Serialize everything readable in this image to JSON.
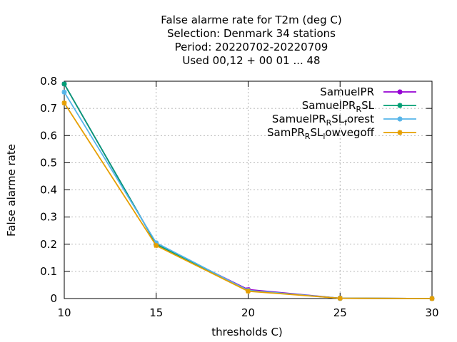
{
  "chart_data": {
    "type": "line",
    "title_lines": [
      "False alarme rate  for T2m (deg C)",
      "Selection: Denmark     34 stations",
      "Period: 20220702-20220709",
      "Used  00,12  + 00 01 ... 48"
    ],
    "xlabel": "thresholds C)",
    "ylabel": "False alarme rate",
    "xlim": [
      10,
      30
    ],
    "ylim": [
      0,
      0.8
    ],
    "xticks": [
      10,
      15,
      20,
      25,
      30
    ],
    "yticks": [
      0,
      0.1,
      0.2,
      0.3,
      0.4,
      0.5,
      0.6,
      0.7,
      0.8
    ],
    "ytick_labels": [
      "0",
      "0.1",
      "0.2",
      "0.3",
      "0.4",
      "0.5",
      "0.6",
      "0.7",
      "0.8"
    ],
    "grid": true,
    "legend_position": "top-right",
    "x": [
      10,
      15,
      20,
      25,
      30
    ],
    "series": [
      {
        "legend": [
          {
            "text": "SamuelPR",
            "sub": false
          }
        ],
        "color": "#9400d3",
        "values": [
          0.79,
          0.2,
          0.033,
          0.001,
          0.0
        ]
      },
      {
        "legend": [
          {
            "text": "SamuelPR",
            "sub": false
          },
          {
            "text": "R",
            "sub": true
          },
          {
            "text": "SL",
            "sub": false
          }
        ],
        "color": "#009e73",
        "values": [
          0.79,
          0.2,
          0.03,
          0.001,
          0.0
        ]
      },
      {
        "legend": [
          {
            "text": "SamuelPR",
            "sub": false
          },
          {
            "text": "R",
            "sub": true
          },
          {
            "text": "SL",
            "sub": false
          },
          {
            "text": "f",
            "sub": true
          },
          {
            "text": "orest",
            "sub": false
          }
        ],
        "color": "#56b4e9",
        "values": [
          0.76,
          0.205,
          0.03,
          0.001,
          0.0
        ]
      },
      {
        "legend": [
          {
            "text": "SamPR",
            "sub": false
          },
          {
            "text": "R",
            "sub": true
          },
          {
            "text": "SL",
            "sub": false
          },
          {
            "text": "l",
            "sub": true
          },
          {
            "text": "owvegoff",
            "sub": false
          }
        ],
        "color": "#e69f00",
        "values": [
          0.72,
          0.195,
          0.027,
          0.001,
          0.0
        ]
      }
    ]
  }
}
